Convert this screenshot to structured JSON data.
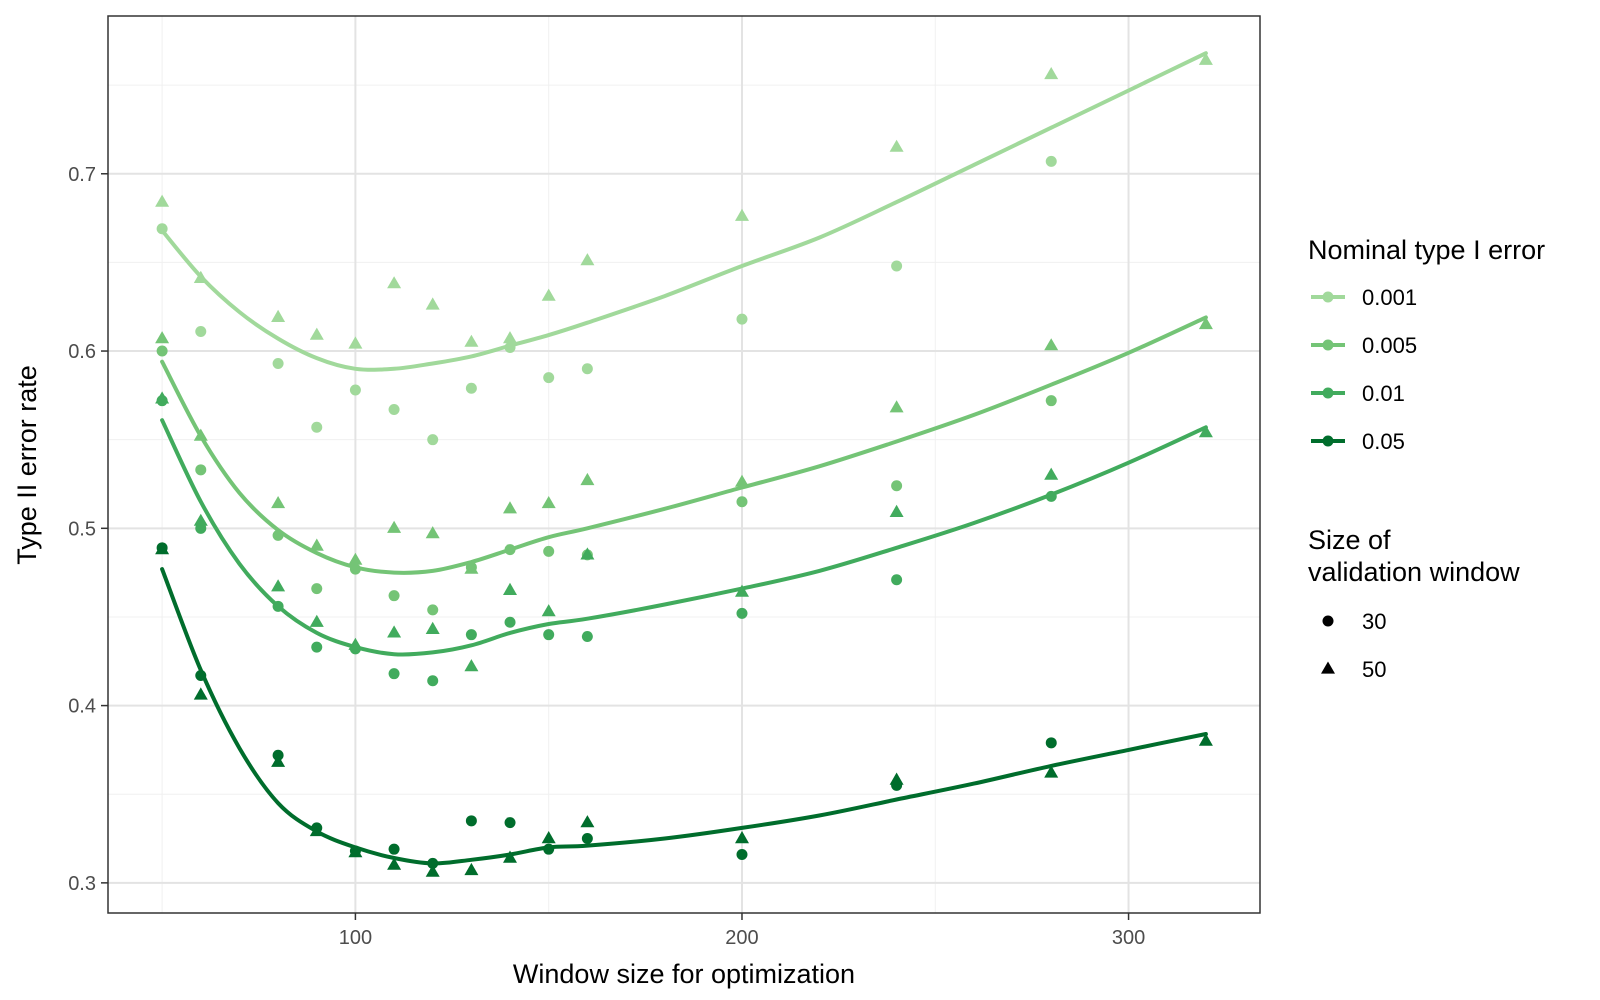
{
  "chart_data": {
    "type": "scatter",
    "xlabel": "Window size for optimization",
    "ylabel": "Type II error rate",
    "xlim": [
      36,
      334
    ],
    "ylim": [
      0.283,
      0.789
    ],
    "x_ticks": [
      100,
      200,
      300
    ],
    "x_tick_labels": [
      "100",
      "200",
      "300"
    ],
    "y_ticks": [
      0.3,
      0.4,
      0.5,
      0.6,
      0.7
    ],
    "y_tick_labels": [
      "0.3",
      "0.4",
      "0.5",
      "0.6",
      "0.7"
    ],
    "grid": true,
    "legend_position": "right",
    "color_legend": {
      "title": "Nominal type I error",
      "entries": [
        "0.001",
        "0.005",
        "0.01",
        "0.05"
      ]
    },
    "shape_legend": {
      "title_lines": [
        "Size of",
        "validation window"
      ],
      "entries": [
        "30",
        "50"
      ]
    },
    "series": [
      {
        "name": "0.001",
        "color": "#a1d99b",
        "points_30": [
          [
            50,
            0.669
          ],
          [
            60,
            0.611
          ],
          [
            80,
            0.593
          ],
          [
            90,
            0.557
          ],
          [
            100,
            0.578
          ],
          [
            110,
            0.567
          ],
          [
            120,
            0.55
          ],
          [
            130,
            0.579
          ],
          [
            140,
            0.602
          ],
          [
            150,
            0.585
          ],
          [
            160,
            0.59
          ],
          [
            200,
            0.618
          ],
          [
            240,
            0.648
          ],
          [
            280,
            0.707
          ]
        ],
        "points_50": [
          [
            50,
            0.684
          ],
          [
            60,
            0.641
          ],
          [
            80,
            0.619
          ],
          [
            90,
            0.609
          ],
          [
            100,
            0.604
          ],
          [
            110,
            0.638
          ],
          [
            120,
            0.626
          ],
          [
            130,
            0.605
          ],
          [
            140,
            0.607
          ],
          [
            150,
            0.631
          ],
          [
            160,
            0.651
          ],
          [
            200,
            0.676
          ],
          [
            240,
            0.715
          ],
          [
            280,
            0.756
          ],
          [
            320,
            0.764
          ]
        ],
        "smooth": [
          [
            50,
            0.668
          ],
          [
            60,
            0.642
          ],
          [
            70,
            0.622
          ],
          [
            80,
            0.607
          ],
          [
            90,
            0.596
          ],
          [
            100,
            0.59
          ],
          [
            110,
            0.59
          ],
          [
            120,
            0.593
          ],
          [
            130,
            0.597
          ],
          [
            140,
            0.603
          ],
          [
            150,
            0.609
          ],
          [
            160,
            0.616
          ],
          [
            180,
            0.631
          ],
          [
            200,
            0.648
          ],
          [
            220,
            0.664
          ],
          [
            240,
            0.684
          ],
          [
            260,
            0.705
          ],
          [
            280,
            0.726
          ],
          [
            300,
            0.747
          ],
          [
            320,
            0.768
          ]
        ]
      },
      {
        "name": "0.005",
        "color": "#74c476",
        "points_30": [
          [
            50,
            0.6
          ],
          [
            60,
            0.533
          ],
          [
            80,
            0.496
          ],
          [
            90,
            0.466
          ],
          [
            100,
            0.477
          ],
          [
            110,
            0.462
          ],
          [
            120,
            0.454
          ],
          [
            130,
            0.478
          ],
          [
            140,
            0.488
          ],
          [
            150,
            0.487
          ],
          [
            160,
            0.485
          ],
          [
            200,
            0.515
          ],
          [
            240,
            0.524
          ],
          [
            280,
            0.572
          ]
        ],
        "points_50": [
          [
            50,
            0.607
          ],
          [
            60,
            0.552
          ],
          [
            80,
            0.514
          ],
          [
            90,
            0.49
          ],
          [
            100,
            0.482
          ],
          [
            110,
            0.5
          ],
          [
            120,
            0.497
          ],
          [
            130,
            0.477
          ],
          [
            140,
            0.511
          ],
          [
            150,
            0.514
          ],
          [
            160,
            0.527
          ],
          [
            200,
            0.526
          ],
          [
            240,
            0.568
          ],
          [
            280,
            0.603
          ],
          [
            320,
            0.615
          ]
        ],
        "smooth": [
          [
            50,
            0.594
          ],
          [
            60,
            0.552
          ],
          [
            70,
            0.52
          ],
          [
            80,
            0.499
          ],
          [
            90,
            0.486
          ],
          [
            100,
            0.478
          ],
          [
            110,
            0.475
          ],
          [
            120,
            0.476
          ],
          [
            130,
            0.481
          ],
          [
            140,
            0.488
          ],
          [
            150,
            0.495
          ],
          [
            160,
            0.5
          ],
          [
            180,
            0.511
          ],
          [
            200,
            0.523
          ],
          [
            220,
            0.535
          ],
          [
            240,
            0.549
          ],
          [
            260,
            0.564
          ],
          [
            280,
            0.581
          ],
          [
            300,
            0.599
          ],
          [
            320,
            0.619
          ]
        ]
      },
      {
        "name": "0.01",
        "color": "#41ab5d",
        "points_30": [
          [
            50,
            0.572
          ],
          [
            60,
            0.5
          ],
          [
            80,
            0.456
          ],
          [
            90,
            0.433
          ],
          [
            100,
            0.432
          ],
          [
            110,
            0.418
          ],
          [
            120,
            0.414
          ],
          [
            130,
            0.44
          ],
          [
            140,
            0.447
          ],
          [
            150,
            0.44
          ],
          [
            160,
            0.439
          ],
          [
            200,
            0.452
          ],
          [
            240,
            0.471
          ],
          [
            280,
            0.518
          ]
        ],
        "points_50": [
          [
            50,
            0.573
          ],
          [
            60,
            0.504
          ],
          [
            80,
            0.467
          ],
          [
            90,
            0.447
          ],
          [
            100,
            0.434
          ],
          [
            110,
            0.441
          ],
          [
            120,
            0.443
          ],
          [
            130,
            0.422
          ],
          [
            140,
            0.465
          ],
          [
            150,
            0.453
          ],
          [
            160,
            0.485
          ],
          [
            200,
            0.464
          ],
          [
            240,
            0.509
          ],
          [
            280,
            0.53
          ],
          [
            320,
            0.554
          ]
        ],
        "smooth": [
          [
            50,
            0.561
          ],
          [
            60,
            0.515
          ],
          [
            70,
            0.48
          ],
          [
            80,
            0.456
          ],
          [
            90,
            0.441
          ],
          [
            100,
            0.433
          ],
          [
            110,
            0.429
          ],
          [
            120,
            0.43
          ],
          [
            130,
            0.434
          ],
          [
            140,
            0.441
          ],
          [
            150,
            0.446
          ],
          [
            160,
            0.449
          ],
          [
            180,
            0.457
          ],
          [
            200,
            0.466
          ],
          [
            220,
            0.476
          ],
          [
            240,
            0.489
          ],
          [
            260,
            0.503
          ],
          [
            280,
            0.519
          ],
          [
            300,
            0.537
          ],
          [
            320,
            0.557
          ]
        ]
      },
      {
        "name": "0.05",
        "color": "#006d2c",
        "points_30": [
          [
            50,
            0.489
          ],
          [
            60,
            0.417
          ],
          [
            80,
            0.372
          ],
          [
            90,
            0.331
          ],
          [
            100,
            0.318
          ],
          [
            110,
            0.319
          ],
          [
            120,
            0.311
          ],
          [
            130,
            0.335
          ],
          [
            140,
            0.334
          ],
          [
            150,
            0.319
          ],
          [
            160,
            0.325
          ],
          [
            200,
            0.316
          ],
          [
            240,
            0.355
          ],
          [
            280,
            0.379
          ]
        ],
        "points_50": [
          [
            50,
            0.488
          ],
          [
            60,
            0.406
          ],
          [
            80,
            0.368
          ],
          [
            90,
            0.329
          ],
          [
            100,
            0.317
          ],
          [
            110,
            0.31
          ],
          [
            120,
            0.306
          ],
          [
            130,
            0.307
          ],
          [
            140,
            0.314
          ],
          [
            150,
            0.325
          ],
          [
            160,
            0.334
          ],
          [
            200,
            0.325
          ],
          [
            240,
            0.358
          ],
          [
            280,
            0.362
          ],
          [
            320,
            0.38
          ]
        ],
        "smooth": [
          [
            50,
            0.477
          ],
          [
            60,
            0.42
          ],
          [
            70,
            0.376
          ],
          [
            80,
            0.345
          ],
          [
            90,
            0.329
          ],
          [
            100,
            0.32
          ],
          [
            110,
            0.314
          ],
          [
            120,
            0.311
          ],
          [
            130,
            0.313
          ],
          [
            140,
            0.316
          ],
          [
            150,
            0.32
          ],
          [
            160,
            0.321
          ],
          [
            180,
            0.325
          ],
          [
            200,
            0.331
          ],
          [
            220,
            0.338
          ],
          [
            240,
            0.347
          ],
          [
            260,
            0.356
          ],
          [
            280,
            0.366
          ],
          [
            300,
            0.375
          ],
          [
            320,
            0.384
          ]
        ]
      }
    ]
  }
}
